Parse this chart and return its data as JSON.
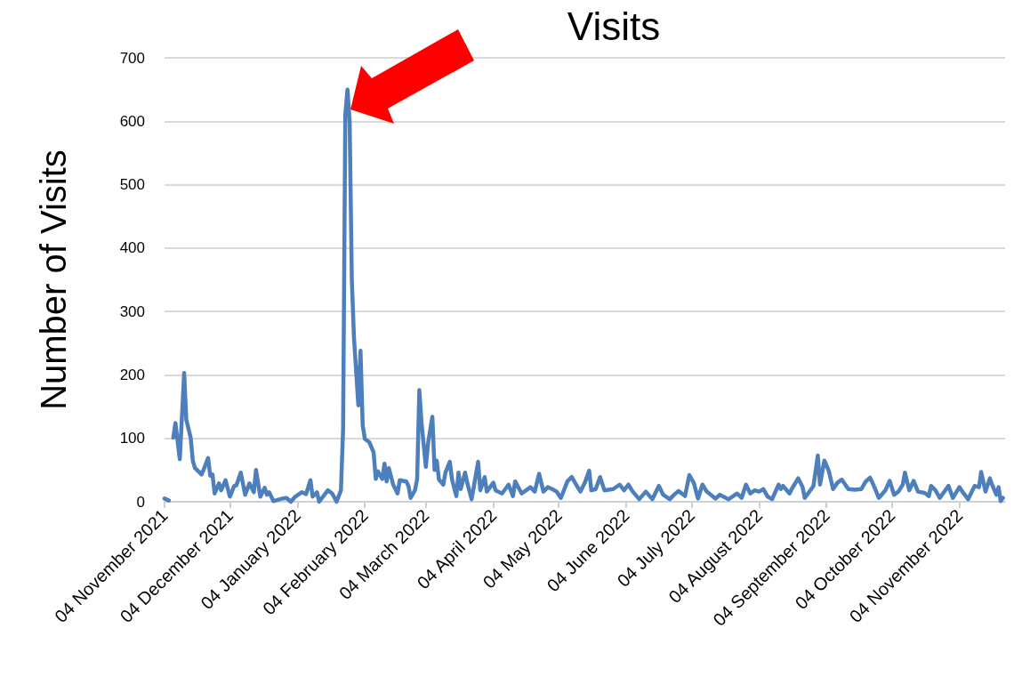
{
  "chart_data": {
    "type": "line",
    "title": "Visits",
    "ylabel": "Number of Visits",
    "x": [
      "2021-11-04",
      "2021-11-06",
      "2021-11-07",
      "2021-11-08",
      "2021-11-09",
      "2021-11-11",
      "2021-11-13",
      "2021-11-14",
      "2021-11-16",
      "2021-11-17",
      "2021-11-18",
      "2021-11-21",
      "2021-11-22",
      "2021-11-24",
      "2021-11-25",
      "2021-11-26",
      "2021-11-27",
      "2021-11-29",
      "2021-11-30",
      "2021-12-02",
      "2021-12-04",
      "2021-12-06",
      "2021-12-07",
      "2021-12-09",
      "2021-12-11",
      "2021-12-13",
      "2021-12-15",
      "2021-12-16",
      "2021-12-18",
      "2021-12-20",
      "2021-12-21",
      "2021-12-22",
      "2021-12-24",
      "2021-12-28",
      "2021-12-30",
      "2022-01-01",
      "2022-01-03",
      "2022-01-06",
      "2022-01-08",
      "2022-01-10",
      "2022-01-11",
      "2022-01-13",
      "2022-01-14",
      "2022-01-18",
      "2022-01-20",
      "2022-01-22",
      "2022-01-24",
      "2022-01-25",
      "2022-01-26",
      "2022-01-27",
      "2022-01-28",
      "2022-01-29",
      "2022-01-30",
      "2022-02-01",
      "2022-02-02",
      "2022-02-03",
      "2022-02-04",
      "2022-02-06",
      "2022-02-08",
      "2022-02-09",
      "2022-02-10",
      "2022-02-12",
      "2022-02-13",
      "2022-02-14",
      "2022-02-15",
      "2022-02-17",
      "2022-02-19",
      "2022-02-20",
      "2022-02-23",
      "2022-02-24",
      "2022-02-25",
      "2022-02-27",
      "2022-02-28",
      "2022-03-01",
      "2022-03-02",
      "2022-03-04",
      "2022-03-05",
      "2022-03-07",
      "2022-03-08",
      "2022-03-09",
      "2022-03-10",
      "2022-03-12",
      "2022-03-13",
      "2022-03-15",
      "2022-03-16",
      "2022-03-18",
      "2022-03-19",
      "2022-03-20",
      "2022-03-22",
      "2022-03-23",
      "2022-03-25",
      "2022-03-26",
      "2022-03-28",
      "2022-03-29",
      "2022-03-31",
      "2022-04-01",
      "2022-04-04",
      "2022-04-05",
      "2022-04-08",
      "2022-04-11",
      "2022-04-13",
      "2022-04-14",
      "2022-04-17",
      "2022-04-21",
      "2022-04-23",
      "2022-04-25",
      "2022-04-27",
      "2022-04-29",
      "2022-05-01",
      "2022-05-03",
      "2022-05-05",
      "2022-05-08",
      "2022-05-10",
      "2022-05-12",
      "2022-05-14",
      "2022-05-16",
      "2022-05-18",
      "2022-05-19",
      "2022-05-21",
      "2022-05-23",
      "2022-05-25",
      "2022-05-29",
      "2022-06-01",
      "2022-06-03",
      "2022-06-05",
      "2022-06-07",
      "2022-06-10",
      "2022-06-13",
      "2022-06-16",
      "2022-06-19",
      "2022-06-21",
      "2022-06-24",
      "2022-06-26",
      "2022-06-28",
      "2022-07-01",
      "2022-07-03",
      "2022-07-05",
      "2022-07-07",
      "2022-07-09",
      "2022-07-11",
      "2022-07-15",
      "2022-07-17",
      "2022-07-21",
      "2022-07-25",
      "2022-07-27",
      "2022-07-29",
      "2022-07-31",
      "2022-08-02",
      "2022-08-04",
      "2022-08-06",
      "2022-08-08",
      "2022-08-10",
      "2022-08-13",
      "2022-08-14",
      "2022-08-15",
      "2022-08-18",
      "2022-08-19",
      "2022-08-22",
      "2022-08-24",
      "2022-08-25",
      "2022-08-28",
      "2022-08-29",
      "2022-08-31",
      "2022-09-01",
      "2022-09-03",
      "2022-09-05",
      "2022-09-07",
      "2022-09-09",
      "2022-09-11",
      "2022-09-14",
      "2022-09-17",
      "2022-09-20",
      "2022-09-22",
      "2022-09-24",
      "2022-09-26",
      "2022-09-28",
      "2022-10-01",
      "2022-10-03",
      "2022-10-05",
      "2022-10-07",
      "2022-10-09",
      "2022-10-10",
      "2022-10-12",
      "2022-10-14",
      "2022-10-16",
      "2022-10-19",
      "2022-10-21",
      "2022-10-22",
      "2022-10-24",
      "2022-10-26",
      "2022-10-30",
      "2022-11-01",
      "2022-11-04",
      "2022-11-06",
      "2022-11-08",
      "2022-11-11",
      "2022-11-13",
      "2022-11-14",
      "2022-11-16",
      "2022-11-18",
      "2022-11-19",
      "2022-11-21",
      "2022-11-22",
      "2022-11-23",
      "2022-11-24"
    ],
    "series": [
      {
        "color": "#4e7fbd",
        "values": [
          5,
          2,
          null,
          101,
          124,
          67,
          203,
          129,
          101,
          64,
          53,
          43,
          51,
          69,
          41,
          43,
          13,
          29,
          18,
          34,
          8,
          25,
          26,
          46,
          11,
          29,
          15,
          50,
          8,
          22,
          11,
          15,
          1,
          5,
          6,
          0,
          8,
          15,
          12,
          34,
          8,
          15,
          0,
          18,
          13,
          0,
          18,
          115,
          610,
          650,
          600,
          350,
          258,
          152,
          238,
          120,
          99,
          94,
          78,
          36,
          48,
          36,
          60,
          32,
          53,
          27,
          13,
          34,
          32,
          25,
          6,
          18,
          36,
          176,
          125,
          55,
          92,
          134,
          50,
          65,
          35,
          27,
          46,
          63,
          35,
          9,
          46,
          20,
          46,
          30,
          4,
          23,
          63,
          18,
          39,
          16,
          30,
          18,
          13,
          27,
          9,
          32,
          13,
          23,
          16,
          44,
          16,
          23,
          20,
          16,
          6,
          32,
          39,
          27,
          16,
          30,
          49,
          18,
          20,
          39,
          18,
          20,
          27,
          18,
          27,
          16,
          4,
          16,
          4,
          25,
          11,
          4,
          11,
          17,
          9,
          42,
          30,
          5,
          27,
          16,
          5,
          11,
          4,
          13,
          6,
          27,
          13,
          18,
          16,
          20,
          8,
          4,
          27,
          20,
          25,
          13,
          20,
          37,
          23,
          6,
          20,
          25,
          73,
          27,
          65,
          49,
          20,
          30,
          35,
          20,
          19,
          20,
          32,
          38,
          23,
          6,
          18,
          33,
          11,
          16,
          27,
          46,
          18,
          33,
          16,
          14,
          9,
          25,
          18,
          6,
          25,
          6,
          23,
          13,
          4,
          25,
          23,
          47,
          16,
          37,
          27,
          11,
          23,
          1,
          6
        ]
      }
    ],
    "xlim": [
      "2021-11-04",
      "2022-11-25"
    ],
    "xticks": [
      {
        "value": "2021-11-04",
        "label": "04 November 2021"
      },
      {
        "value": "2021-12-04",
        "label": "04 December 2021"
      },
      {
        "value": "2022-01-04",
        "label": "04 January 2022"
      },
      {
        "value": "2022-02-04",
        "label": "04 February 2022"
      },
      {
        "value": "2022-03-04",
        "label": "04 March 2022"
      },
      {
        "value": "2022-04-04",
        "label": "04 April 2022"
      },
      {
        "value": "2022-05-04",
        "label": "04 May 2022"
      },
      {
        "value": "2022-06-04",
        "label": "04 June 2022"
      },
      {
        "value": "2022-07-04",
        "label": "04 July 2022"
      },
      {
        "value": "2022-08-04",
        "label": "04 August 2022"
      },
      {
        "value": "2022-09-04",
        "label": "04 September 2022"
      },
      {
        "value": "2022-10-04",
        "label": "04 October 2022"
      },
      {
        "value": "2022-11-04",
        "label": "04 November 2022"
      }
    ],
    "ylim": [
      0,
      700
    ],
    "yticks": [
      0,
      100,
      200,
      300,
      400,
      500,
      600,
      700
    ],
    "grid": "y",
    "marker": "none",
    "line_style": "solid"
  }
}
